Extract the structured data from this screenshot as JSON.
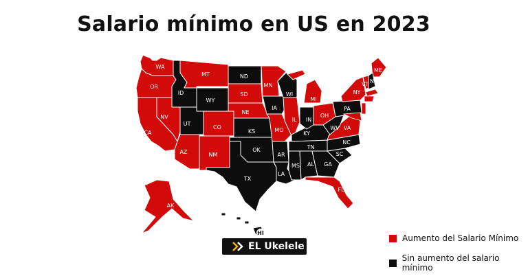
{
  "title": "Salario mínimo en US en 2023",
  "colors": {
    "increase": "#d20a0a",
    "no_increase": "#0d0d0d"
  },
  "states": [
    {
      "code": "WA",
      "status": "increase"
    },
    {
      "code": "OR",
      "status": "increase"
    },
    {
      "code": "CA",
      "status": "increase"
    },
    {
      "code": "ID",
      "status": "no_increase"
    },
    {
      "code": "NV",
      "status": "increase"
    },
    {
      "code": "MT",
      "status": "increase"
    },
    {
      "code": "WY",
      "status": "no_increase"
    },
    {
      "code": "UT",
      "status": "no_increase"
    },
    {
      "code": "AZ",
      "status": "increase"
    },
    {
      "code": "CO",
      "status": "increase"
    },
    {
      "code": "NM",
      "status": "increase"
    },
    {
      "code": "ND",
      "status": "no_increase"
    },
    {
      "code": "SD",
      "status": "increase"
    },
    {
      "code": "NE",
      "status": "increase"
    },
    {
      "code": "KS",
      "status": "no_increase"
    },
    {
      "code": "OK",
      "status": "no_increase"
    },
    {
      "code": "TX",
      "status": "no_increase"
    },
    {
      "code": "MN",
      "status": "increase"
    },
    {
      "code": "IA",
      "status": "no_increase"
    },
    {
      "code": "MO",
      "status": "increase"
    },
    {
      "code": "AR",
      "status": "no_increase"
    },
    {
      "code": "LA",
      "status": "no_increase"
    },
    {
      "code": "WI",
      "status": "no_increase"
    },
    {
      "code": "IL",
      "status": "increase"
    },
    {
      "code": "MS",
      "status": "no_increase"
    },
    {
      "code": "AL",
      "status": "no_increase"
    },
    {
      "code": "TN",
      "status": "no_increase"
    },
    {
      "code": "KY",
      "status": "no_increase"
    },
    {
      "code": "IN",
      "status": "no_increase"
    },
    {
      "code": "MI",
      "status": "increase"
    },
    {
      "code": "OH",
      "status": "increase"
    },
    {
      "code": "GA",
      "status": "no_increase"
    },
    {
      "code": "FL",
      "status": "increase"
    },
    {
      "code": "SC",
      "status": "no_increase"
    },
    {
      "code": "NC",
      "status": "no_increase"
    },
    {
      "code": "VA",
      "status": "increase"
    },
    {
      "code": "WV",
      "status": "no_increase"
    },
    {
      "code": "PA",
      "status": "no_increase"
    },
    {
      "code": "NY",
      "status": "increase"
    },
    {
      "code": "ME",
      "status": "increase"
    },
    {
      "code": "NH",
      "status": "no_increase"
    },
    {
      "code": "VT",
      "status": "increase"
    },
    {
      "code": "AK",
      "status": "increase"
    },
    {
      "code": "HI",
      "status": "no_increase"
    }
  ],
  "legend": [
    {
      "label": "Aumento del Salario Mínimo",
      "status": "increase"
    },
    {
      "label": "Sin aumento del salario mínimo",
      "status": "no_increase"
    }
  ],
  "logo": {
    "text": "EL Ukelele"
  }
}
